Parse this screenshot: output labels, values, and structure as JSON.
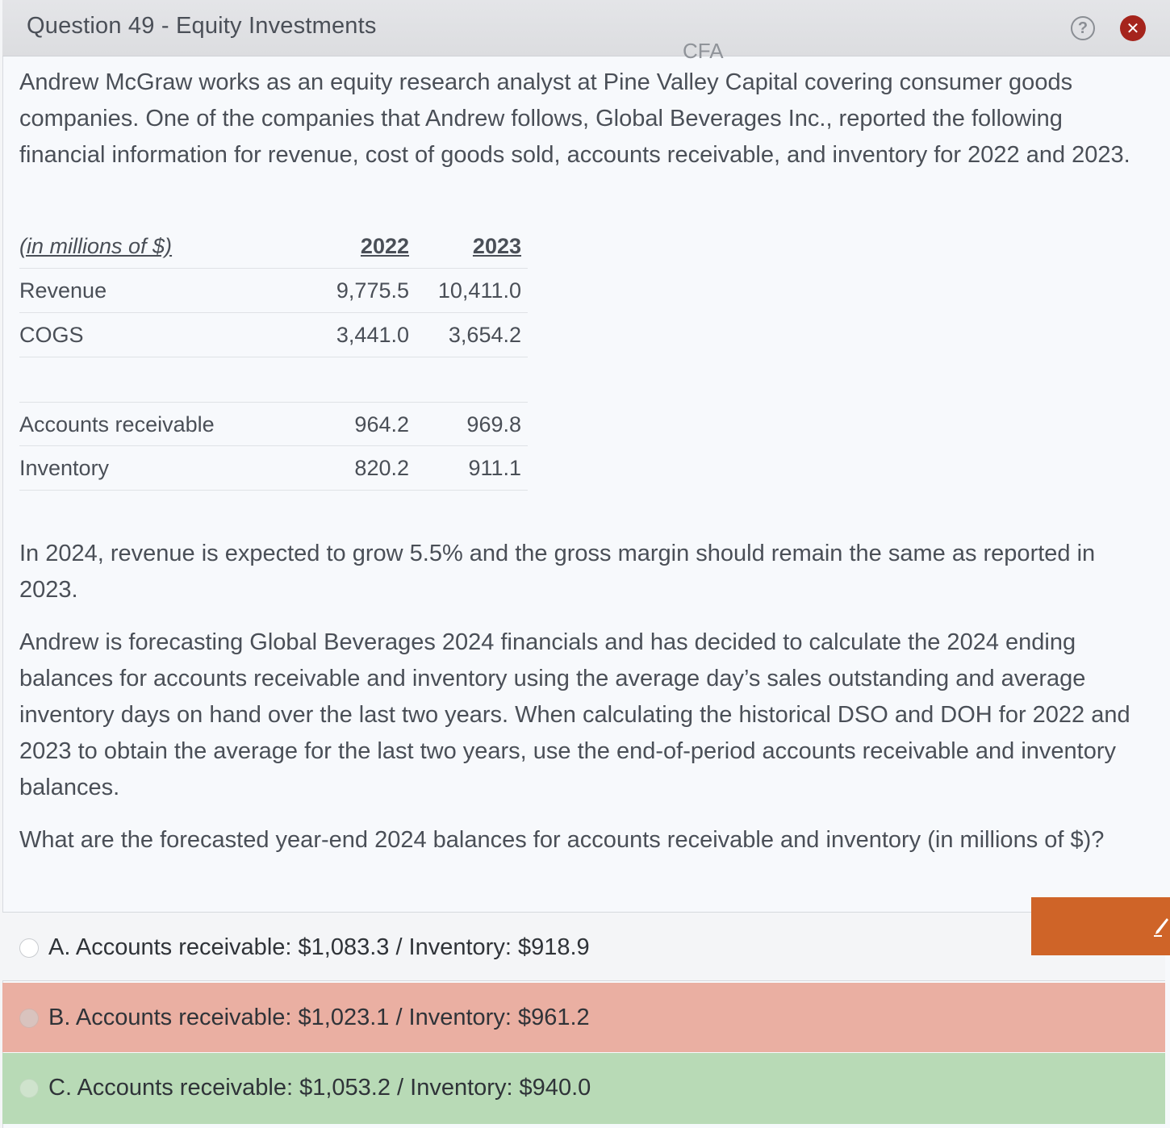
{
  "header": {
    "title": "Question 49 - Equity Investments",
    "watermark": "CFA",
    "help_icon": "?",
    "close_icon": "✕"
  },
  "question": {
    "intro": "Andrew McGraw works as an equity research analyst at Pine Valley Capital covering consumer goods companies.  One of the companies that Andrew follows, Global Beverages Inc., reported the following financial information for revenue, cost of goods sold, accounts receivable, and inventory for 2022 and 2023.",
    "table": {
      "header_label": "(in millions of $)",
      "col1": "2022",
      "col2": "2023",
      "rows": [
        {
          "label": "Revenue",
          "v1": "9,775.5",
          "v2": "10,411.0"
        },
        {
          "label": "COGS",
          "v1": "3,441.0",
          "v2": "3,654.2"
        },
        {
          "label": "Accounts receivable",
          "v1": "964.2",
          "v2": "969.8"
        },
        {
          "label": "Inventory",
          "v1": "820.2",
          "v2": "911.1"
        }
      ]
    },
    "para2": "In 2024, revenue is expected to grow 5.5% and the gross margin should remain the same as reported in 2023.",
    "para3": "Andrew is forecasting Global Beverages 2024 financials and has decided to calculate the 2024 ending balances for accounts receivable and inventory using the average day’s sales outstanding and average inventory days on hand over the last two years.  When calculating the historical DSO and DOH for 2022 and 2023 to obtain the average for the last two years, use the end-of-period accounts receivable and inventory balances.",
    "prompt": "What are the forecasted year-end 2024 balances for accounts receivable and inventory (in millions of $)?"
  },
  "options": [
    {
      "text": "A. Accounts receivable: $1,083.3 / Inventory: $918.9",
      "state": "neutral"
    },
    {
      "text": "B. Accounts receivable: $1,023.1 / Inventory: $961.2",
      "state": "incorrect"
    },
    {
      "text": "C. Accounts receivable: $1,053.2 / Inventory: $940.0",
      "state": "correct"
    }
  ],
  "colors": {
    "incorrect": "#eaafa2",
    "correct": "#b8dab6",
    "accent": "#cf6428",
    "close": "#a5241c"
  }
}
